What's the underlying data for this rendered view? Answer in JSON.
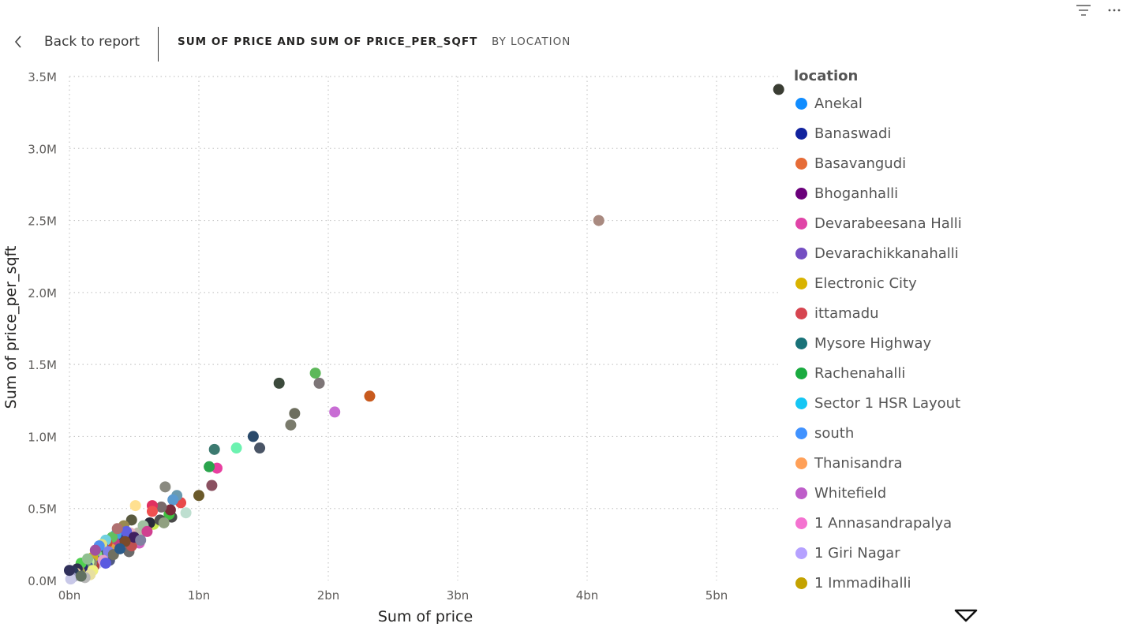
{
  "toolbar": {
    "filter_icon": "filter-lines-icon",
    "more_icon": "ellipsis-icon"
  },
  "header": {
    "back_label": "Back to report",
    "title_main": "SUM OF PRICE AND SUM OF PRICE_PER_SQFT",
    "title_by": "BY LOCATION"
  },
  "chart_data": {
    "type": "scatter",
    "xlabel": "Sum of price",
    "ylabel": "Sum of price_per_sqft",
    "xlim": [
      0,
      5.5
    ],
    "ylim": [
      0,
      3.5
    ],
    "x_unit": "bn",
    "y_unit": "M",
    "x_ticks": [
      0,
      1,
      2,
      3,
      4,
      5
    ],
    "x_tick_labels": [
      "0bn",
      "1bn",
      "2bn",
      "3bn",
      "4bn",
      "5bn"
    ],
    "y_ticks": [
      0,
      0.5,
      1.0,
      1.5,
      2.0,
      2.5,
      3.0,
      3.5
    ],
    "y_tick_labels": [
      "0.0M",
      "0.5M",
      "1.0M",
      "1.5M",
      "2.0M",
      "2.5M",
      "3.0M",
      "3.5M"
    ],
    "grid": true,
    "legend_title": "location",
    "legend_position": "right",
    "legend": [
      {
        "name": "Anekal",
        "color": "#118DFF"
      },
      {
        "name": "Banaswadi",
        "color": "#12239E"
      },
      {
        "name": "Basavangudi",
        "color": "#E66C37"
      },
      {
        "name": "Bhoganhalli",
        "color": "#6B007B"
      },
      {
        "name": "Devarabeesana Halli",
        "color": "#E044A7"
      },
      {
        "name": "Devarachikkanahalli",
        "color": "#744EC2"
      },
      {
        "name": "Electronic City",
        "color": "#D9B300"
      },
      {
        "name": "ittamadu",
        "color": "#D64550"
      },
      {
        "name": "Mysore Highway",
        "color": "#197278"
      },
      {
        "name": "Rachenahalli",
        "color": "#1AAB40"
      },
      {
        "name": "Sector 1 HSR Layout",
        "color": "#15C6F4"
      },
      {
        "name": "south",
        "color": "#4092FF"
      },
      {
        "name": "Thanisandra",
        "color": "#FFA058"
      },
      {
        "name": "Whitefield",
        "color": "#BE5DC9"
      },
      {
        "name": "1 Annasandrapalya",
        "color": "#F472D0"
      },
      {
        "name": "1 Giri Nagar",
        "color": "#B5A1FF"
      },
      {
        "name": "1 Immadihalli",
        "color": "#C4A200"
      }
    ],
    "points": [
      {
        "x": 5.48,
        "y": 3.41,
        "color": "#3A3D33"
      },
      {
        "x": 4.09,
        "y": 2.5,
        "color": "#A98A80"
      },
      {
        "x": 2.32,
        "y": 1.28,
        "color": "#C85A1E"
      },
      {
        "x": 2.05,
        "y": 1.17,
        "color": "#C86DD4"
      },
      {
        "x": 1.93,
        "y": 1.37,
        "color": "#7D7577"
      },
      {
        "x": 1.9,
        "y": 1.44,
        "color": "#5DB85A"
      },
      {
        "x": 1.74,
        "y": 1.16,
        "color": "#6D6E5E"
      },
      {
        "x": 1.71,
        "y": 1.08,
        "color": "#7A7B6C"
      },
      {
        "x": 1.62,
        "y": 1.37,
        "color": "#3C4A3C"
      },
      {
        "x": 1.47,
        "y": 0.92,
        "color": "#4A5566"
      },
      {
        "x": 1.42,
        "y": 1.0,
        "color": "#2A4A6B"
      },
      {
        "x": 1.29,
        "y": 0.92,
        "color": "#6CF2B0"
      },
      {
        "x": 1.14,
        "y": 0.78,
        "color": "#E83FA0"
      },
      {
        "x": 1.12,
        "y": 0.91,
        "color": "#3C7A70"
      },
      {
        "x": 1.1,
        "y": 0.66,
        "color": "#8A5060"
      },
      {
        "x": 1.08,
        "y": 0.79,
        "color": "#2AA44C"
      },
      {
        "x": 1.0,
        "y": 0.59,
        "color": "#6B5A2A"
      },
      {
        "x": 0.9,
        "y": 0.47,
        "color": "#BEDFD0"
      },
      {
        "x": 0.86,
        "y": 0.54,
        "color": "#E84A4A"
      },
      {
        "x": 0.83,
        "y": 0.59,
        "color": "#6A9AB0"
      },
      {
        "x": 0.8,
        "y": 0.56,
        "color": "#5A9AD0"
      },
      {
        "x": 0.79,
        "y": 0.44,
        "color": "#4A4A4A"
      },
      {
        "x": 0.77,
        "y": 0.46,
        "color": "#40C040"
      },
      {
        "x": 0.78,
        "y": 0.49,
        "color": "#7A2A3A"
      },
      {
        "x": 0.74,
        "y": 0.65,
        "color": "#8A8A80"
      },
      {
        "x": 0.71,
        "y": 0.51,
        "color": "#7A6A6A"
      },
      {
        "x": 0.64,
        "y": 0.52,
        "color": "#E03060"
      },
      {
        "x": 0.64,
        "y": 0.48,
        "color": "#F05050"
      },
      {
        "x": 0.65,
        "y": 0.39,
        "color": "#C8E850"
      },
      {
        "x": 0.62,
        "y": 0.4,
        "color": "#2A2A3A"
      },
      {
        "x": 0.58,
        "y": 0.35,
        "color": "#D03070"
      },
      {
        "x": 0.51,
        "y": 0.52,
        "color": "#FFE090"
      },
      {
        "x": 0.48,
        "y": 0.42,
        "color": "#5A5A40"
      },
      {
        "x": 0.54,
        "y": 0.26,
        "color": "#D060C0"
      },
      {
        "x": 0.53,
        "y": 0.33,
        "color": "#B8B8A8"
      },
      {
        "x": 0.47,
        "y": 0.33,
        "color": "#E8B0C0"
      },
      {
        "x": 0.46,
        "y": 0.2,
        "color": "#6A6A6A"
      },
      {
        "x": 0.44,
        "y": 0.3,
        "color": "#2A8A8A"
      },
      {
        "x": 0.42,
        "y": 0.38,
        "color": "#9A8A50"
      },
      {
        "x": 0.4,
        "y": 0.28,
        "color": "#202840"
      },
      {
        "x": 0.4,
        "y": 0.31,
        "color": "#3040A0"
      },
      {
        "x": 0.38,
        "y": 0.24,
        "color": "#A060D0"
      },
      {
        "x": 0.36,
        "y": 0.32,
        "color": "#40A0E0"
      },
      {
        "x": 0.35,
        "y": 0.26,
        "color": "#C04080"
      },
      {
        "x": 0.33,
        "y": 0.3,
        "color": "#60C060"
      },
      {
        "x": 0.32,
        "y": 0.22,
        "color": "#E0A040"
      },
      {
        "x": 0.31,
        "y": 0.14,
        "color": "#505A80"
      },
      {
        "x": 0.29,
        "y": 0.26,
        "color": "#D05030"
      },
      {
        "x": 0.28,
        "y": 0.28,
        "color": "#70D0E0"
      },
      {
        "x": 0.27,
        "y": 0.19,
        "color": "#9050D0"
      },
      {
        "x": 0.26,
        "y": 0.23,
        "color": "#5050D0"
      },
      {
        "x": 0.25,
        "y": 0.25,
        "color": "#E0E080"
      },
      {
        "x": 0.24,
        "y": 0.16,
        "color": "#A0A0A0"
      },
      {
        "x": 0.23,
        "y": 0.2,
        "color": "#406040"
      },
      {
        "x": 0.22,
        "y": 0.12,
        "color": "#D0D0F0"
      },
      {
        "x": 0.21,
        "y": 0.18,
        "color": "#80E080"
      },
      {
        "x": 0.2,
        "y": 0.14,
        "color": "#3050B0"
      },
      {
        "x": 0.19,
        "y": 0.1,
        "color": "#B04040"
      },
      {
        "x": 0.18,
        "y": 0.16,
        "color": "#D0B020"
      },
      {
        "x": 0.17,
        "y": 0.12,
        "color": "#909070"
      },
      {
        "x": 0.16,
        "y": 0.08,
        "color": "#60E0A0"
      },
      {
        "x": 0.15,
        "y": 0.13,
        "color": "#C0F0A0"
      },
      {
        "x": 0.14,
        "y": 0.1,
        "color": "#4060A0"
      },
      {
        "x": 0.13,
        "y": 0.07,
        "color": "#D8F0C0"
      },
      {
        "x": 0.12,
        "y": 0.11,
        "color": "#70A070"
      },
      {
        "x": 0.11,
        "y": 0.05,
        "color": "#E0C0E0"
      },
      {
        "x": 0.1,
        "y": 0.09,
        "color": "#2A2A70"
      },
      {
        "x": 0.09,
        "y": 0.12,
        "color": "#50D050"
      },
      {
        "x": 0.08,
        "y": 0.06,
        "color": "#A0A050"
      },
      {
        "x": 0.07,
        "y": 0.04,
        "color": "#C0E0F0"
      },
      {
        "x": 0.06,
        "y": 0.08,
        "color": "#303050"
      },
      {
        "x": 0.05,
        "y": 0.05,
        "color": "#F0D0A0"
      },
      {
        "x": 0.04,
        "y": 0.03,
        "color": "#D0D0D0"
      },
      {
        "x": 0.03,
        "y": 0.06,
        "color": "#2A3A5A"
      },
      {
        "x": 0.02,
        "y": 0.02,
        "color": "#9A9AC0"
      },
      {
        "x": 0.01,
        "y": 0.01,
        "color": "#C8C8E8"
      },
      {
        "x": 0.0,
        "y": 0.07,
        "color": "#30305A"
      },
      {
        "x": 0.44,
        "y": 0.34,
        "color": "#6060E0"
      },
      {
        "x": 0.37,
        "y": 0.36,
        "color": "#B07070"
      },
      {
        "x": 0.3,
        "y": 0.2,
        "color": "#8080E8"
      },
      {
        "x": 0.26,
        "y": 0.14,
        "color": "#E8A0C8"
      },
      {
        "x": 0.23,
        "y": 0.24,
        "color": "#5090F0"
      },
      {
        "x": 0.18,
        "y": 0.07,
        "color": "#F0F080"
      },
      {
        "x": 0.34,
        "y": 0.18,
        "color": "#707060"
      },
      {
        "x": 0.48,
        "y": 0.24,
        "color": "#C05050"
      },
      {
        "x": 0.5,
        "y": 0.3,
        "color": "#402060"
      },
      {
        "x": 0.57,
        "y": 0.38,
        "color": "#A0C0A0"
      },
      {
        "x": 0.6,
        "y": 0.34,
        "color": "#D04090"
      },
      {
        "x": 0.7,
        "y": 0.42,
        "color": "#505050"
      },
      {
        "x": 0.73,
        "y": 0.4,
        "color": "#90A080"
      },
      {
        "x": 0.55,
        "y": 0.28,
        "color": "#8080A0"
      },
      {
        "x": 0.43,
        "y": 0.27,
        "color": "#7A4A2A"
      },
      {
        "x": 0.39,
        "y": 0.22,
        "color": "#2A5A8A"
      },
      {
        "x": 0.16,
        "y": 0.04,
        "color": "#E8E0A0"
      },
      {
        "x": 0.12,
        "y": 0.02,
        "color": "#B8B8B8"
      },
      {
        "x": 0.09,
        "y": 0.03,
        "color": "#607060"
      },
      {
        "x": 0.2,
        "y": 0.21,
        "color": "#A050A0"
      },
      {
        "x": 0.28,
        "y": 0.12,
        "color": "#5A5AE0"
      },
      {
        "x": 0.14,
        "y": 0.15,
        "color": "#90C090"
      }
    ]
  }
}
